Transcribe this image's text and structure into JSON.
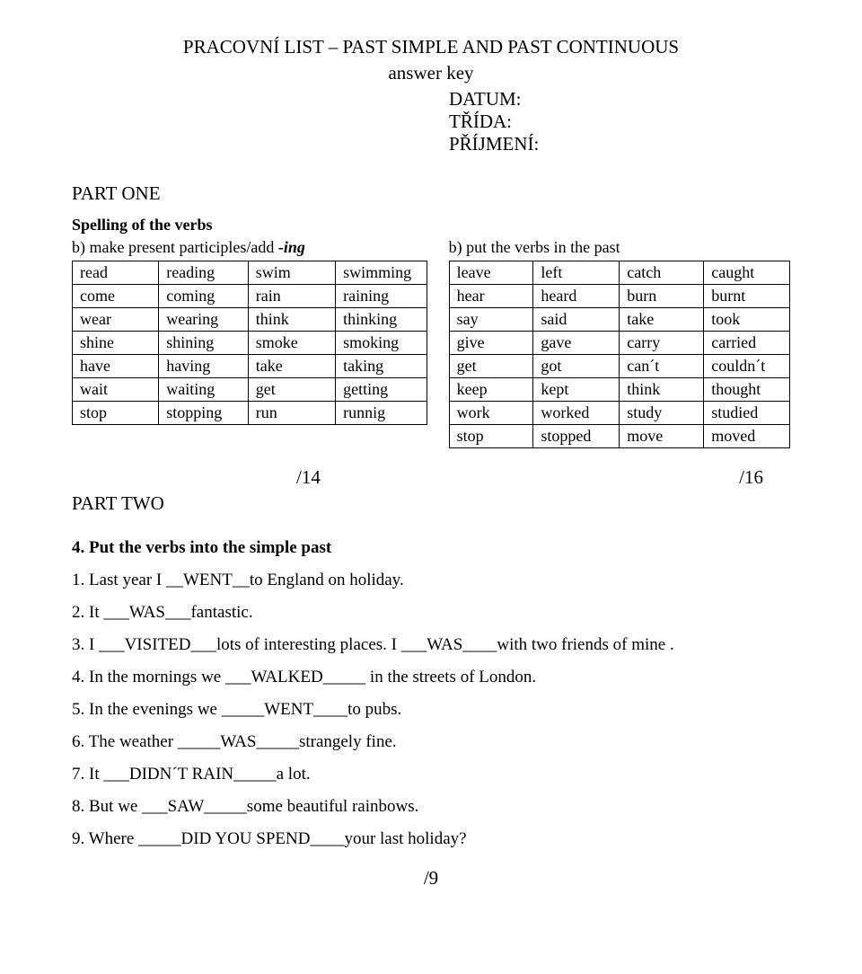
{
  "title": {
    "line1": "PRACOVNÍ LIST – PAST SIMPLE AND PAST CONTINUOUS",
    "line2": "answer key"
  },
  "meta": {
    "date": "DATUM:",
    "class": "TŘÍDA:",
    "surname": "PŘÍJMENÍ:"
  },
  "partOne": {
    "heading": "PART ONE",
    "spelling": "Spelling of the verbs",
    "leftSub_a": "b)  make present participles/add",
    "leftSub_b": " -ing",
    "rightSub": "b) put the verbs in the past",
    "leftTable": [
      [
        "read",
        "reading",
        "swim",
        "swimming"
      ],
      [
        "come",
        "coming",
        "rain",
        "raining"
      ],
      [
        "wear",
        "wearing",
        "think",
        "thinking"
      ],
      [
        "shine",
        "shining",
        "smoke",
        "smoking"
      ],
      [
        "have",
        "having",
        "take",
        "taking"
      ],
      [
        "wait",
        "waiting",
        "get",
        "getting"
      ],
      [
        "stop",
        "stopping",
        "run",
        "runnig"
      ]
    ],
    "rightTable": [
      [
        "leave",
        "left",
        "catch",
        "caught"
      ],
      [
        "hear",
        "heard",
        "burn",
        "burnt"
      ],
      [
        "say",
        "said",
        "take",
        "took"
      ],
      [
        "give",
        "gave",
        "carry",
        "carried"
      ],
      [
        "get",
        "got",
        "can´t",
        "couldn´t"
      ],
      [
        "keep",
        "kept",
        "think",
        "thought"
      ],
      [
        "work",
        "worked",
        "study",
        "studied"
      ],
      [
        "stop",
        "stopped",
        "move",
        "moved"
      ]
    ]
  },
  "scores": {
    "left": "/14",
    "right": "/16",
    "bottom": "/9"
  },
  "partTwo": {
    "label": "PART TWO",
    "qHeading": "4. Put the verbs into the simple past",
    "lines": [
      "1. Last year I  __WENT__to England on holiday.",
      "2. It ___WAS___fantastic.",
      "3. I ___VISITED___lots of interesting places. I ___WAS____with two friends of mine .",
      "4. In the mornings we ___WALKED_____ in the streets of London.",
      "5. In the evenings we _____WENT____to pubs.",
      "6. The weather _____WAS_____strangely fine.",
      "7. It ___DIDN´T RAIN_____a lot.",
      "8. But we ___SAW_____some beautiful rainbows.",
      "9. Where _____DID YOU SPEND____your last holiday?"
    ]
  }
}
